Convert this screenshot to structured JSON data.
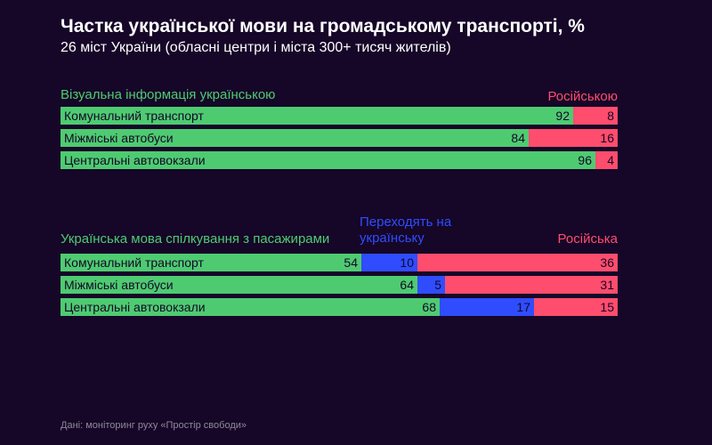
{
  "title": "Частка української мови на громадському транспорті, %",
  "subtitle": "26 міст України (обласні центри і міста 300+ тисяч жителів)",
  "source": "Дані: моніторинг руху «Простір свободи»",
  "colors": {
    "ukrainian": "#4ecb71",
    "russian": "#ff4d6d",
    "switch": "#2f4dff",
    "background": "#160628"
  },
  "chart_data": [
    {
      "type": "bar",
      "orientation": "horizontal",
      "stacked": true,
      "title": "Візуальна інформація українською",
      "categories": [
        "Комунальний транспорт",
        "Міжміські автобуси",
        "Центральні автовокзали"
      ],
      "series": [
        {
          "name": "Візуальна інформація українською",
          "color": "#4ecb71",
          "values": [
            92,
            84,
            96
          ]
        },
        {
          "name": "Російською",
          "color": "#ff4d6d",
          "values": [
            8,
            16,
            4
          ]
        }
      ],
      "xlim": [
        0,
        100
      ]
    },
    {
      "type": "bar",
      "orientation": "horizontal",
      "stacked": true,
      "title": "Українська мова спілкування з пасажирами",
      "categories": [
        "Комунальний транспорт",
        "Міжміські автобуси",
        "Центральні автовокзали"
      ],
      "series": [
        {
          "name": "Українська мова спілкування з пасажирами",
          "color": "#4ecb71",
          "values": [
            54,
            64,
            68
          ]
        },
        {
          "name": "Переходять на українську",
          "color": "#2f4dff",
          "values": [
            10,
            5,
            17
          ]
        },
        {
          "name": "Російська",
          "color": "#ff4d6d",
          "values": [
            36,
            31,
            15
          ]
        }
      ],
      "xlim": [
        0,
        100
      ]
    }
  ]
}
